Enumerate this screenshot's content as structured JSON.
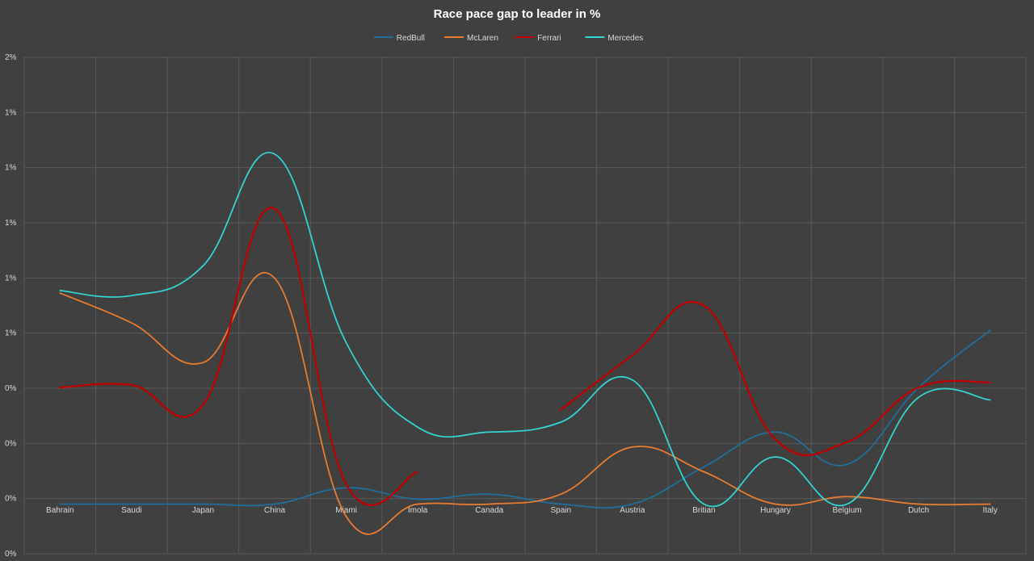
{
  "chart_data": {
    "type": "line",
    "title": "Race pace gap to leader in %",
    "categories": [
      "Bahrain",
      "Saudi",
      "Japan",
      "China",
      "Miami",
      "Imola",
      "Canada",
      "Spain",
      "Austria",
      "Britian",
      "Hungary",
      "Belgium",
      "Dutch",
      "Italy"
    ],
    "y_tick_labels": [
      "2%",
      "1%",
      "1%",
      "1%",
      "1%",
      "1%",
      "0%",
      "0%",
      "0%",
      "0%"
    ],
    "ylim": [
      -0.1,
      0.9
    ],
    "grid": true,
    "legend_position": "top",
    "series": [
      {
        "name": "RedBull",
        "color": "#1f6f9f",
        "values": [
          0,
          0,
          0,
          0,
          0.033,
          0.01,
          0.02,
          0,
          0,
          0.075,
          0.145,
          0.08,
          0.235,
          0.35
        ]
      },
      {
        "name": "McLaren",
        "color": "#ed7d31",
        "values": [
          0.425,
          0.365,
          0.285,
          0.455,
          -0.025,
          0,
          0,
          0.02,
          0.115,
          0.065,
          0,
          0.015,
          0,
          0
        ]
      },
      {
        "name": "Ferrari",
        "color": "#c00000",
        "values": [
          0.235,
          0.24,
          0.2,
          0.595,
          0.04,
          0.065,
          null,
          0.19,
          0.3,
          0.4,
          0.13,
          0.125,
          0.235,
          0.245
        ]
      },
      {
        "name": "Mercedes",
        "color": "#33d6d6",
        "values": [
          0.43,
          0.42,
          0.48,
          0.705,
          0.325,
          0.155,
          0.145,
          0.165,
          0.25,
          0,
          0.095,
          0,
          0.215,
          0.21
        ]
      }
    ]
  }
}
